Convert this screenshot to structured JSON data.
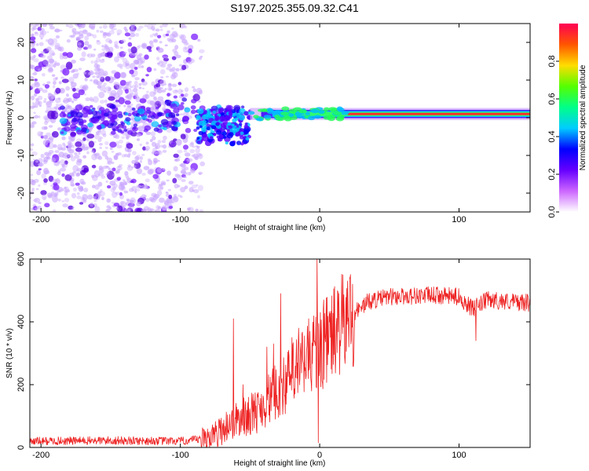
{
  "title": "S197.2025.355.09.32.C41",
  "colors": {
    "snr_line": "#ee2222",
    "background": "#ffffff"
  },
  "chart_data": [
    {
      "type": "heatmap",
      "name": "spectrogram",
      "xlabel": "Height of straight line (km)",
      "ylabel": "Frequency (Hz)",
      "xlim": [
        -208,
        151
      ],
      "ylim": [
        -25,
        25
      ],
      "xticks": [
        -200,
        -100,
        0,
        100
      ],
      "xtick_labels": [
        "-200",
        "-100",
        "0",
        "100"
      ],
      "yticks": [
        -20,
        -10,
        0,
        10,
        20
      ],
      "ytick_labels": [
        "-20",
        "-10",
        "0",
        "10",
        "20"
      ],
      "features": {
        "noise_region_x": [
          -208,
          -88
        ],
        "transition_region_x": [
          -88,
          -50
        ],
        "stable_tone_x": [
          -50,
          151
        ],
        "stable_tone_frequency_hz": 1.0,
        "noise_frequency_range_hz": [
          -25,
          25
        ]
      }
    },
    {
      "type": "colorbar",
      "name": "amplitude-colorbar",
      "label": "Normalized spectral amplitude",
      "range": [
        0,
        1
      ],
      "ticks": [
        0.0,
        0.2,
        0.4,
        0.6,
        0.8
      ],
      "tick_labels": [
        "0.0",
        "0.2",
        "0.4",
        "0.6",
        "0.8"
      ],
      "colormap": [
        "#ffffff",
        "#cc66ff",
        "#6600ff",
        "#0000ff",
        "#00ccff",
        "#00ff88",
        "#55ff00",
        "#ffdd00",
        "#ff5500",
        "#ff0055"
      ]
    },
    {
      "type": "line",
      "name": "snr",
      "xlabel": "Height of straight line (km)",
      "ylabel": "SNR (10 * v/v)",
      "xlim": [
        -208,
        151
      ],
      "ylim": [
        0,
        600
      ],
      "xticks": [
        -200,
        -100,
        0,
        100
      ],
      "xtick_labels": [
        "-200",
        "-100",
        "0",
        "100"
      ],
      "yticks": [
        0,
        200,
        400,
        600
      ],
      "ytick_labels": [
        "0",
        "200",
        "400",
        "600"
      ],
      "trend": {
        "x": [
          -208,
          -150,
          -100,
          -85,
          -75,
          -65,
          -55,
          -45,
          -35,
          -25,
          -15,
          -5,
          5,
          15,
          25,
          35,
          50,
          80,
          100,
          110,
          120,
          151
        ],
        "y": [
          20,
          22,
          20,
          25,
          40,
          75,
          95,
          115,
          160,
          200,
          250,
          300,
          340,
          385,
          430,
          465,
          480,
          485,
          480,
          440,
          470,
          460
        ]
      },
      "spikes": [
        {
          "x": -62,
          "y": 410
        },
        {
          "x": -55,
          "y": 200
        },
        {
          "x": -38,
          "y": 320
        },
        {
          "x": -33,
          "y": 330
        },
        {
          "x": -28,
          "y": 490
        },
        {
          "x": -20,
          "y": 350
        },
        {
          "x": -15,
          "y": 380
        },
        {
          "x": -8,
          "y": 410
        },
        {
          "x": -2,
          "y": 600
        },
        {
          "x": -1,
          "y": 15
        },
        {
          "x": 3,
          "y": 470
        },
        {
          "x": 112,
          "y": 340
        }
      ]
    }
  ]
}
